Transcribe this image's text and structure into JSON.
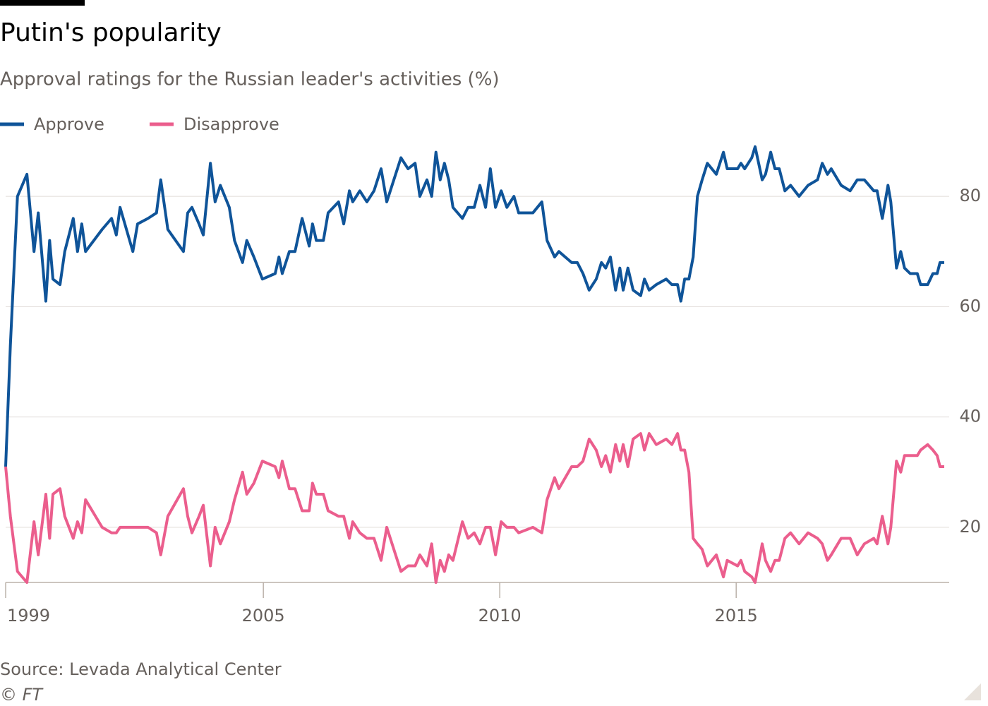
{
  "chart_data": {
    "type": "line",
    "title": "Putin's popularity",
    "subtitle": "Approval ratings for the Russian leader's activities (%)",
    "source": "Source: Levada Analytical Center",
    "copyright": "© FT",
    "x": [
      1999.55,
      1999.65,
      1999.8,
      2000.0,
      2000.15,
      2000.24,
      2000.4,
      2000.48,
      2000.55,
      2000.7,
      2000.8,
      2000.98,
      2001.07,
      2001.16,
      2001.24,
      2001.59,
      2001.79,
      2001.89,
      2001.97,
      2002.24,
      2002.34,
      2002.56,
      2002.74,
      2002.83,
      2002.98,
      2003.31,
      2003.4,
      2003.49,
      2003.64,
      2003.73,
      2003.88,
      2003.98,
      2004.09,
      2004.28,
      2004.39,
      2004.56,
      2004.65,
      2004.8,
      2004.98,
      2005.25,
      2005.33,
      2005.4,
      2005.55,
      2005.67,
      2005.82,
      2005.97,
      2006.04,
      2006.12,
      2006.27,
      2006.37,
      2006.59,
      2006.7,
      2006.82,
      2006.89,
      2007.04,
      2007.19,
      2007.34,
      2007.49,
      2007.61,
      2007.91,
      2008.06,
      2008.21,
      2008.31,
      2008.46,
      2008.56,
      2008.65,
      2008.74,
      2008.83,
      2008.92,
      2009.01,
      2009.21,
      2009.33,
      2009.46,
      2009.58,
      2009.7,
      2009.8,
      2009.91,
      2010.03,
      2010.15,
      2010.3,
      2010.4,
      2010.7,
      2010.89,
      2011.0,
      2011.16,
      2011.25,
      2011.52,
      2011.64,
      2011.76,
      2011.89,
      2012.04,
      2012.15,
      2012.24,
      2012.34,
      2012.45,
      2012.54,
      2012.61,
      2012.71,
      2012.82,
      2012.98,
      2013.06,
      2013.16,
      2013.31,
      2013.52,
      2013.64,
      2013.76,
      2013.83,
      2013.91,
      2014.0,
      2014.09,
      2014.18,
      2014.28,
      2014.39,
      2014.58,
      2014.73,
      2014.81,
      2015.03,
      2015.1,
      2015.18,
      2015.33,
      2015.4,
      2015.55,
      2015.62,
      2015.73,
      2015.82,
      2015.91,
      2016.03,
      2016.15,
      2016.33,
      2016.52,
      2016.72,
      2016.82,
      2016.93,
      2017.01,
      2017.22,
      2017.41,
      2017.56,
      2017.71,
      2017.91,
      2017.98,
      2018.09,
      2018.21,
      2018.27,
      2018.39,
      2018.48,
      2018.56,
      2018.68,
      2018.83,
      2018.9,
      2019.05,
      2019.16,
      2019.25,
      2019.31,
      2019.4
    ],
    "series": [
      {
        "name": "Approve",
        "color": "#0f5499",
        "values": [
          31,
          53,
          80,
          84,
          70,
          77,
          61,
          72,
          65,
          64,
          70,
          76,
          70,
          75,
          70,
          74,
          76,
          73,
          78,
          70,
          75,
          76,
          77,
          83,
          74,
          70,
          77,
          78,
          75,
          73,
          86,
          79,
          82,
          78,
          72,
          68,
          72,
          69,
          65,
          66,
          69,
          66,
          70,
          70,
          76,
          71,
          75,
          72,
          72,
          77,
          79,
          75,
          81,
          79,
          81,
          79,
          81,
          85,
          79,
          87,
          85,
          86,
          80,
          83,
          80,
          88,
          83,
          86,
          83,
          78,
          76,
          78,
          78,
          82,
          78,
          85,
          78,
          81,
          78,
          80,
          77,
          77,
          79,
          72,
          69,
          70,
          68,
          68,
          66,
          63,
          65,
          68,
          67,
          69,
          63,
          67,
          63,
          67,
          63,
          62,
          65,
          63,
          64,
          65,
          64,
          64,
          61,
          65,
          65,
          69,
          80,
          83,
          86,
          84,
          88,
          85,
          85,
          86,
          85,
          87,
          89,
          83,
          84,
          88,
          85,
          85,
          81,
          82,
          80,
          82,
          83,
          86,
          84,
          85,
          82,
          81,
          83,
          83,
          81,
          81,
          76,
          82,
          79,
          67,
          70,
          67,
          66,
          66,
          64,
          64,
          66,
          66,
          68,
          68
        ]
      },
      {
        "name": "Disapprove",
        "color": "#eb5e8d",
        "values": [
          31,
          22,
          12,
          10,
          21,
          15,
          26,
          18,
          26,
          27,
          22,
          18,
          21,
          19,
          25,
          20,
          19,
          19,
          20,
          20,
          20,
          20,
          19,
          15,
          22,
          27,
          22,
          19,
          22,
          24,
          13,
          20,
          17,
          21,
          25,
          30,
          26,
          28,
          32,
          31,
          29,
          32,
          27,
          27,
          23,
          23,
          28,
          26,
          26,
          23,
          22,
          22,
          18,
          21,
          19,
          18,
          18,
          14,
          20,
          12,
          13,
          13,
          15,
          13,
          17,
          10,
          14,
          12,
          15,
          14,
          21,
          18,
          19,
          17,
          20,
          20,
          15,
          21,
          20,
          20,
          19,
          20,
          19,
          25,
          29,
          27,
          31,
          31,
          32,
          36,
          34,
          31,
          33,
          30,
          35,
          32,
          35,
          31,
          36,
          37,
          34,
          37,
          35,
          36,
          35,
          37,
          34,
          34,
          30,
          18,
          17,
          16,
          13,
          15,
          11,
          14,
          13,
          14,
          12,
          11,
          10,
          17,
          14,
          12,
          14,
          14,
          18,
          19,
          17,
          19,
          18,
          17,
          14,
          15,
          18,
          18,
          15,
          17,
          18,
          17,
          22,
          17,
          20,
          32,
          30,
          33,
          33,
          33,
          34,
          35,
          34,
          33,
          31,
          31
        ]
      }
    ],
    "xlim": [
      1999.55,
      2019.4
    ],
    "xticks": [
      {
        "value": 1999.55,
        "label": "1999"
      },
      2005,
      2010,
      2015
    ],
    "ylim": [
      10,
      90
    ],
    "yticks": [
      20,
      40,
      60,
      80
    ],
    "grid": true
  }
}
